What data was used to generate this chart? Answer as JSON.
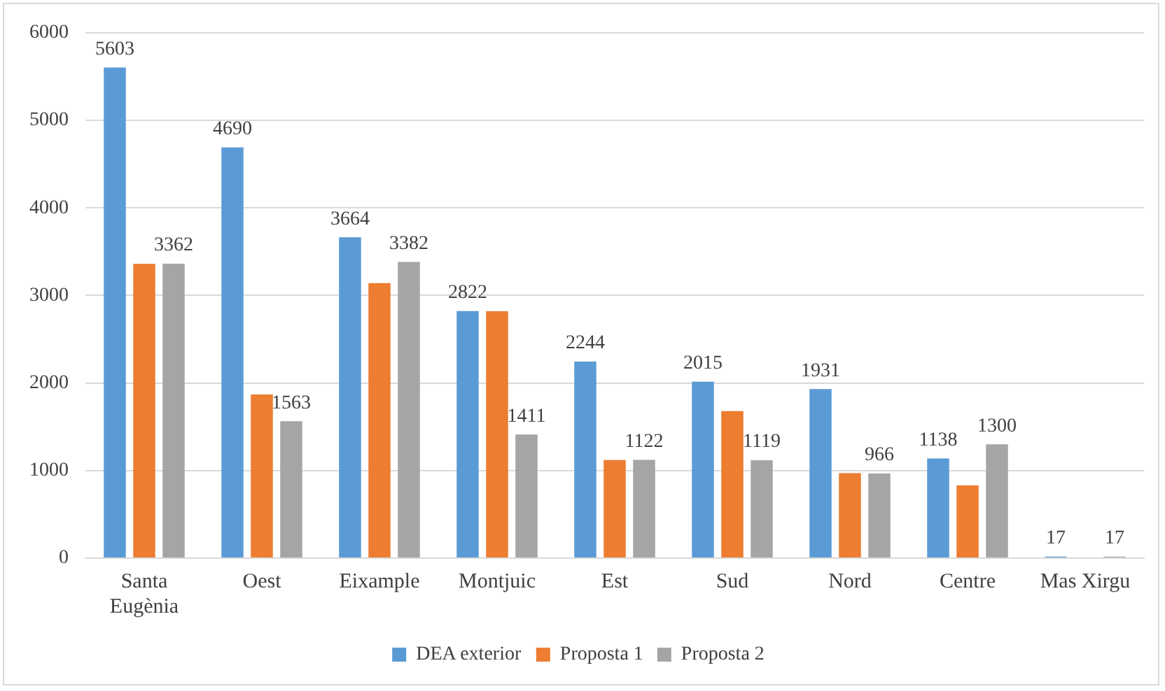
{
  "chart_data": {
    "type": "bar",
    "categories": [
      "Santa Eugènia",
      "Oest",
      "Eixample",
      "Montjuic",
      "Est",
      "Sud",
      "Nord",
      "Centre",
      "Mas Xirgu"
    ],
    "series": [
      {
        "name": "DEA exterior",
        "color": "#5b9bd5",
        "values": [
          5603,
          4690,
          3664,
          2822,
          2244,
          2015,
          1931,
          1138,
          17
        ],
        "value_labels": [
          "5603",
          "4690",
          "3664",
          "2822",
          "2244",
          "2015",
          "1931",
          "1138",
          "17"
        ]
      },
      {
        "name": "Proposta 1",
        "color": "#ed7d31",
        "values": [
          3360,
          1870,
          3140,
          2820,
          1120,
          1680,
          970,
          830,
          null
        ]
      },
      {
        "name": "Proposta 2",
        "color": "#a5a5a5",
        "values": [
          3362,
          1563,
          3382,
          1411,
          1122,
          1119,
          966,
          1300,
          17
        ],
        "value_labels": [
          "3362",
          "1563",
          "3382",
          "1411",
          "1122",
          "1119",
          "966",
          "1300",
          "17"
        ]
      }
    ],
    "ylim": [
      0,
      6000
    ],
    "yticks": [
      0,
      1000,
      2000,
      3000,
      4000,
      5000,
      6000
    ],
    "grid": "y",
    "legend": "bottom"
  }
}
